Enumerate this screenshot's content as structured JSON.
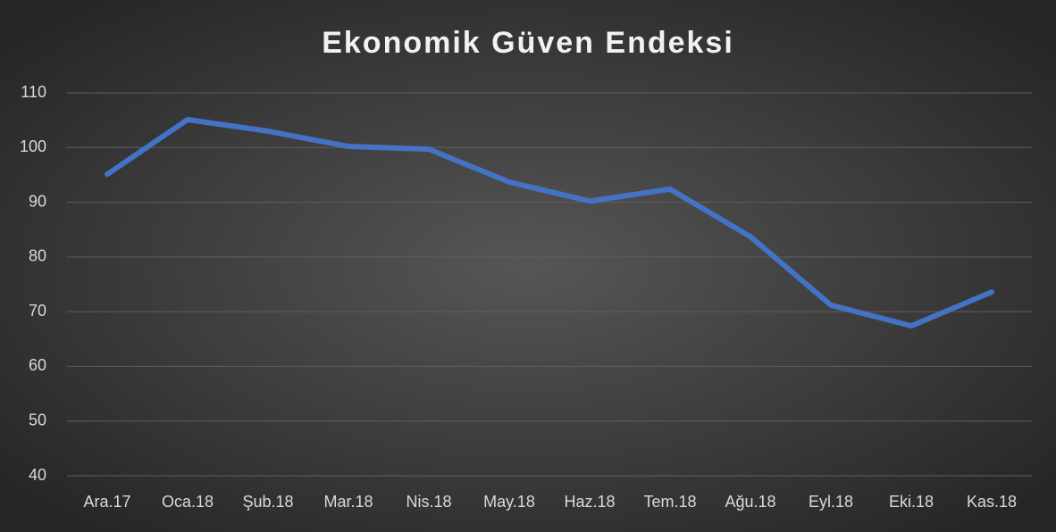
{
  "chart_data": {
    "type": "line",
    "title": "Ekonomik Güven Endeksi",
    "categories": [
      "Ara.17",
      "Oca.18",
      "Şub.18",
      "Mar.18",
      "Nis.18",
      "May.18",
      "Haz.18",
      "Tem.18",
      "Ağu.18",
      "Eyl.18",
      "Eki.18",
      "Kas.18"
    ],
    "values": [
      95.1,
      105.1,
      103.0,
      100.2,
      99.7,
      93.7,
      90.2,
      92.4,
      83.7,
      71.2,
      67.4,
      73.6
    ],
    "color": "#4472c4",
    "ylim": [
      40,
      110
    ],
    "yticks": [
      40,
      50,
      60,
      70,
      80,
      90,
      100,
      110
    ],
    "grid": true
  }
}
